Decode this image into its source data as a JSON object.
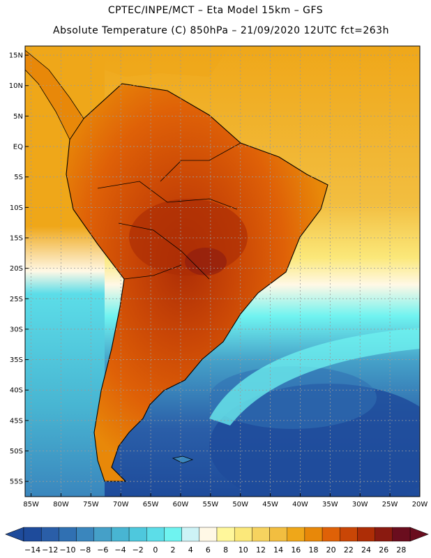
{
  "header": {
    "line1": "CPTEC/INPE/MCT –   Eta Model 15km – GFS",
    "line2": "Absolute Temperature (C) 850hPa – 21/09/2020 12UTC fct=263h"
  },
  "axes": {
    "lat_labels": [
      "15N",
      "10N",
      "5N",
      "EQ",
      "5S",
      "10S",
      "15S",
      "20S",
      "25S",
      "30S",
      "35S",
      "40S",
      "45S",
      "50S",
      "55S"
    ],
    "lon_labels": [
      "85W",
      "80W",
      "75W",
      "70W",
      "65W",
      "60W",
      "55W",
      "50W",
      "45W",
      "40W",
      "35W",
      "30W",
      "25W",
      "20W"
    ],
    "lat_range": [
      16.5,
      -57.5
    ],
    "lon_range": [
      -86,
      -20
    ]
  },
  "colorbar": {
    "labels": [
      "-14",
      "-12",
      "-10",
      "-8",
      "-6",
      "-4",
      "-2",
      "0",
      "2",
      "4",
      "6",
      "8",
      "10",
      "12",
      "14",
      "16",
      "18",
      "20",
      "22",
      "24",
      "26",
      "28"
    ],
    "colors": [
      "#1e4b9b",
      "#2a5ea8",
      "#3070b2",
      "#3a86bd",
      "#45a0c8",
      "#48b5d2",
      "#4ec8dd",
      "#5cdde8",
      "#6ff3f0",
      "#cdf3f6",
      "#fff8e6",
      "#fff79b",
      "#fbe87a",
      "#f6d35f",
      "#f2be40",
      "#efa719",
      "#e88809",
      "#df6107",
      "#c94606",
      "#ad2d06",
      "#8a1a10",
      "#6a0d1e"
    ]
  },
  "colors": {
    "ocean_north": "#efa719",
    "ocean_cold": "#2a5ea8",
    "land_hot": "#c94606",
    "grid": "#9a9a9a"
  }
}
